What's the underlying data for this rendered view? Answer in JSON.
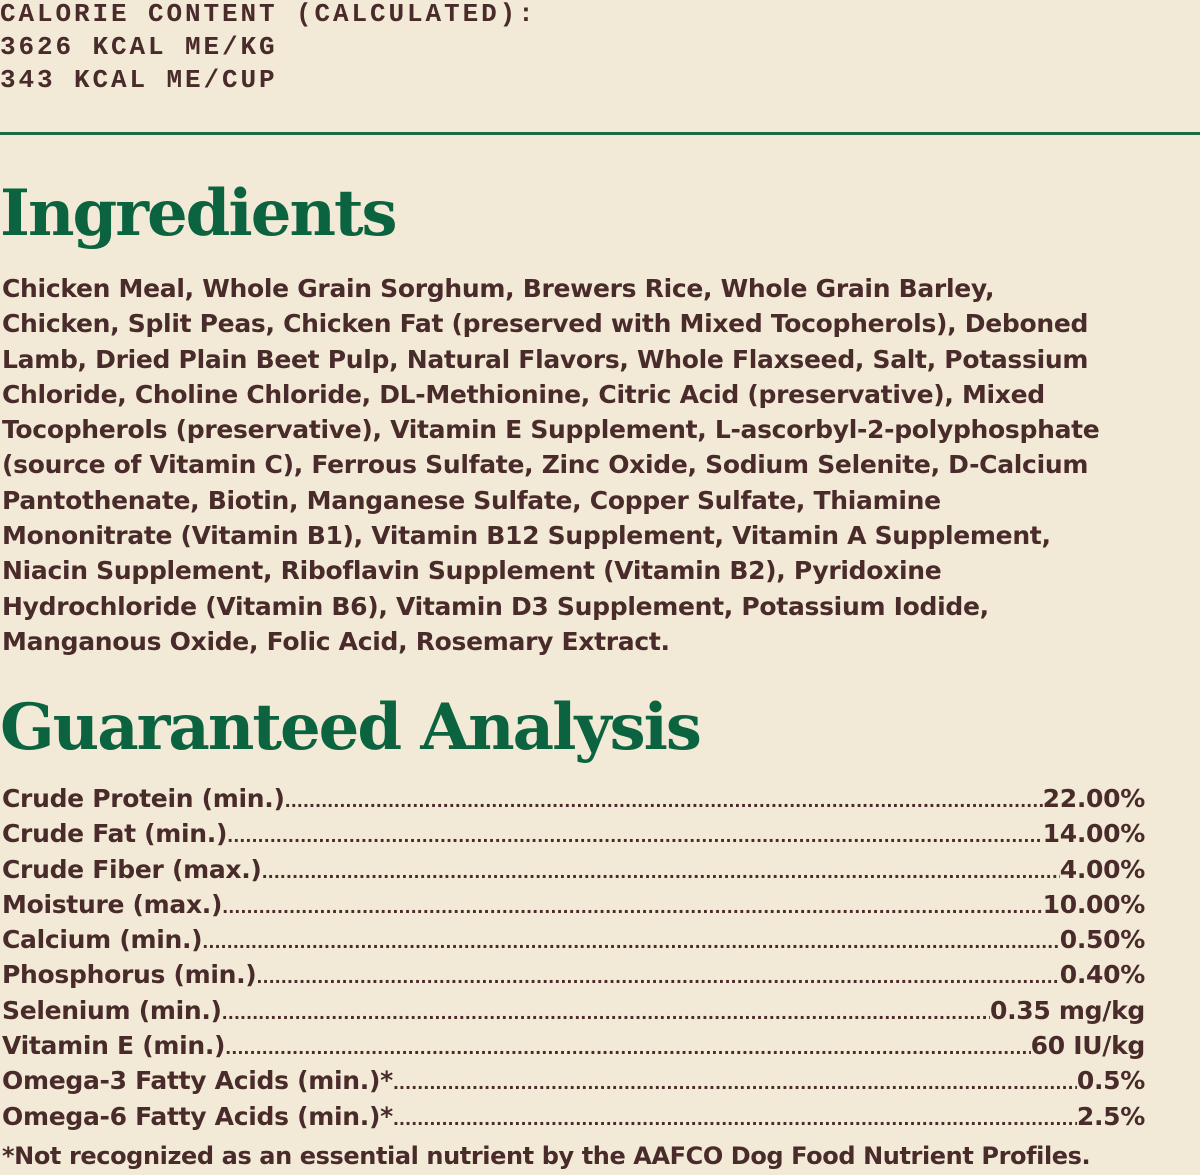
{
  "calorie": {
    "title": "CALORIE CONTENT (CALCULATED):",
    "per_kg": "3626 KCAL ME/KG",
    "per_cup": "343 KCAL ME/CUP"
  },
  "colors": {
    "background": "#f2ead6",
    "text": "#4a2b2b",
    "heading": "#0b6340",
    "rule": "#1d6a45"
  },
  "ingredients": {
    "heading": "Ingredients",
    "lines": [
      "Chicken Meal, Whole Grain Sorghum, Brewers Rice, Whole Grain Barley,",
      "Chicken, Split Peas, Chicken Fat (preserved with Mixed Tocopherols), Deboned",
      "Lamb, Dried Plain Beet Pulp, Natural Flavors, Whole Flaxseed, Salt, Potassium",
      "Chloride, Choline Chloride, DL-Methionine, Citric Acid (preservative), Mixed",
      "Tocopherols (preservative), Vitamin E Supplement,  L-ascorbyl-2-polyphosphate",
      "(source of Vitamin C), Ferrous Sulfate, Zinc Oxide, Sodium Selenite, D-Calcium",
      "Pantothenate, Biotin, Manganese Sulfate, Copper Sulfate, Thiamine",
      "Mononitrate (Vitamin B1), Vitamin B12 Supplement, Vitamin A Supplement,",
      "Niacin Supplement, Riboflavin Supplement (Vitamin B2), Pyridoxine",
      "Hydrochloride (Vitamin B6), Vitamin D3 Supplement, Potassium Iodide,",
      "Manganous Oxide, Folic Acid, Rosemary Extract."
    ]
  },
  "analysis": {
    "heading": "Guaranteed Analysis",
    "rows": [
      {
        "name": "Crude Protein (min.)",
        "value": "22.00%"
      },
      {
        "name": "Crude Fat (min.)",
        "value": "14.00%"
      },
      {
        "name": "Crude Fiber (max.)",
        "value": " 4.00%"
      },
      {
        "name": "Moisture  (max.)",
        "value": "10.00%"
      },
      {
        "name": "Calcium (min.)",
        "value": " 0.50%"
      },
      {
        "name": "Phosphorus (min.)",
        "value": " 0.40%"
      },
      {
        "name": "Selenium (min.)",
        "value": " 0.35 mg/kg"
      },
      {
        "name": "Vitamin E (min.)",
        "value": " 60 IU/kg"
      },
      {
        "name": "Omega-3 Fatty Acids (min.)* ",
        "value": "0.5%"
      },
      {
        "name": "Omega-6 Fatty Acids (min.)* ",
        "value": "2.5%"
      }
    ],
    "footnote": "*Not recognized as an essential nutrient by the AAFCO Dog Food Nutrient Profiles."
  }
}
